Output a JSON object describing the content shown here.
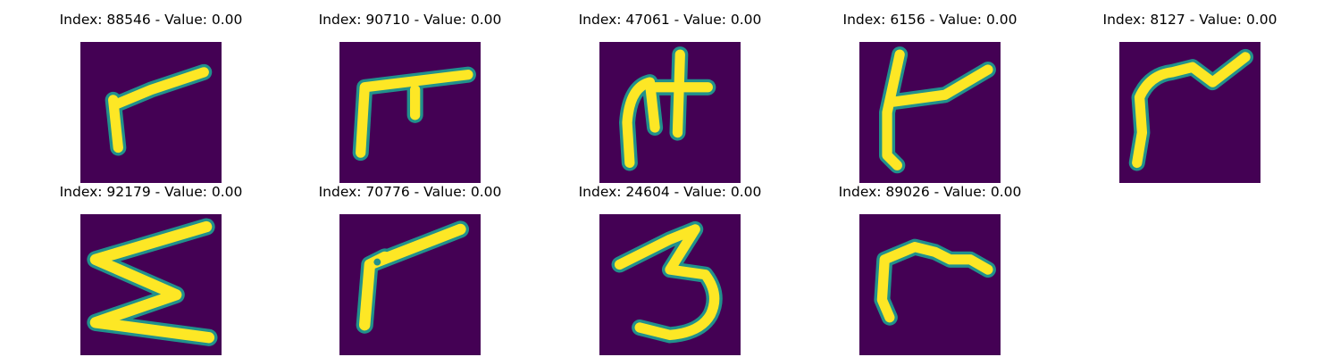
{
  "palette": {
    "background": "#440154",
    "stroke": "#fde725",
    "edge": "#21918c",
    "mid": "#5ec962"
  },
  "items": [
    {
      "title": "Index: 88546 - Value: 0.00",
      "glyph": "stroke-glyph"
    },
    {
      "title": "Index: 90710 - Value: 0.00",
      "glyph": "stroke-glyph"
    },
    {
      "title": "Index: 47061 - Value: 0.00",
      "glyph": "stroke-glyph"
    },
    {
      "title": "Index: 6156 - Value: 0.00",
      "glyph": "stroke-glyph"
    },
    {
      "title": "Index: 8127 - Value: 0.00",
      "glyph": "stroke-glyph"
    },
    {
      "title": "Index: 92179 - Value: 0.00",
      "glyph": "stroke-glyph"
    },
    {
      "title": "Index: 70776 - Value: 0.00",
      "glyph": "stroke-glyph"
    },
    {
      "title": "Index: 24604 - Value: 0.00",
      "glyph": "stroke-glyph"
    },
    {
      "title": "Index: 89026 - Value: 0.00",
      "glyph": "stroke-glyph"
    }
  ]
}
